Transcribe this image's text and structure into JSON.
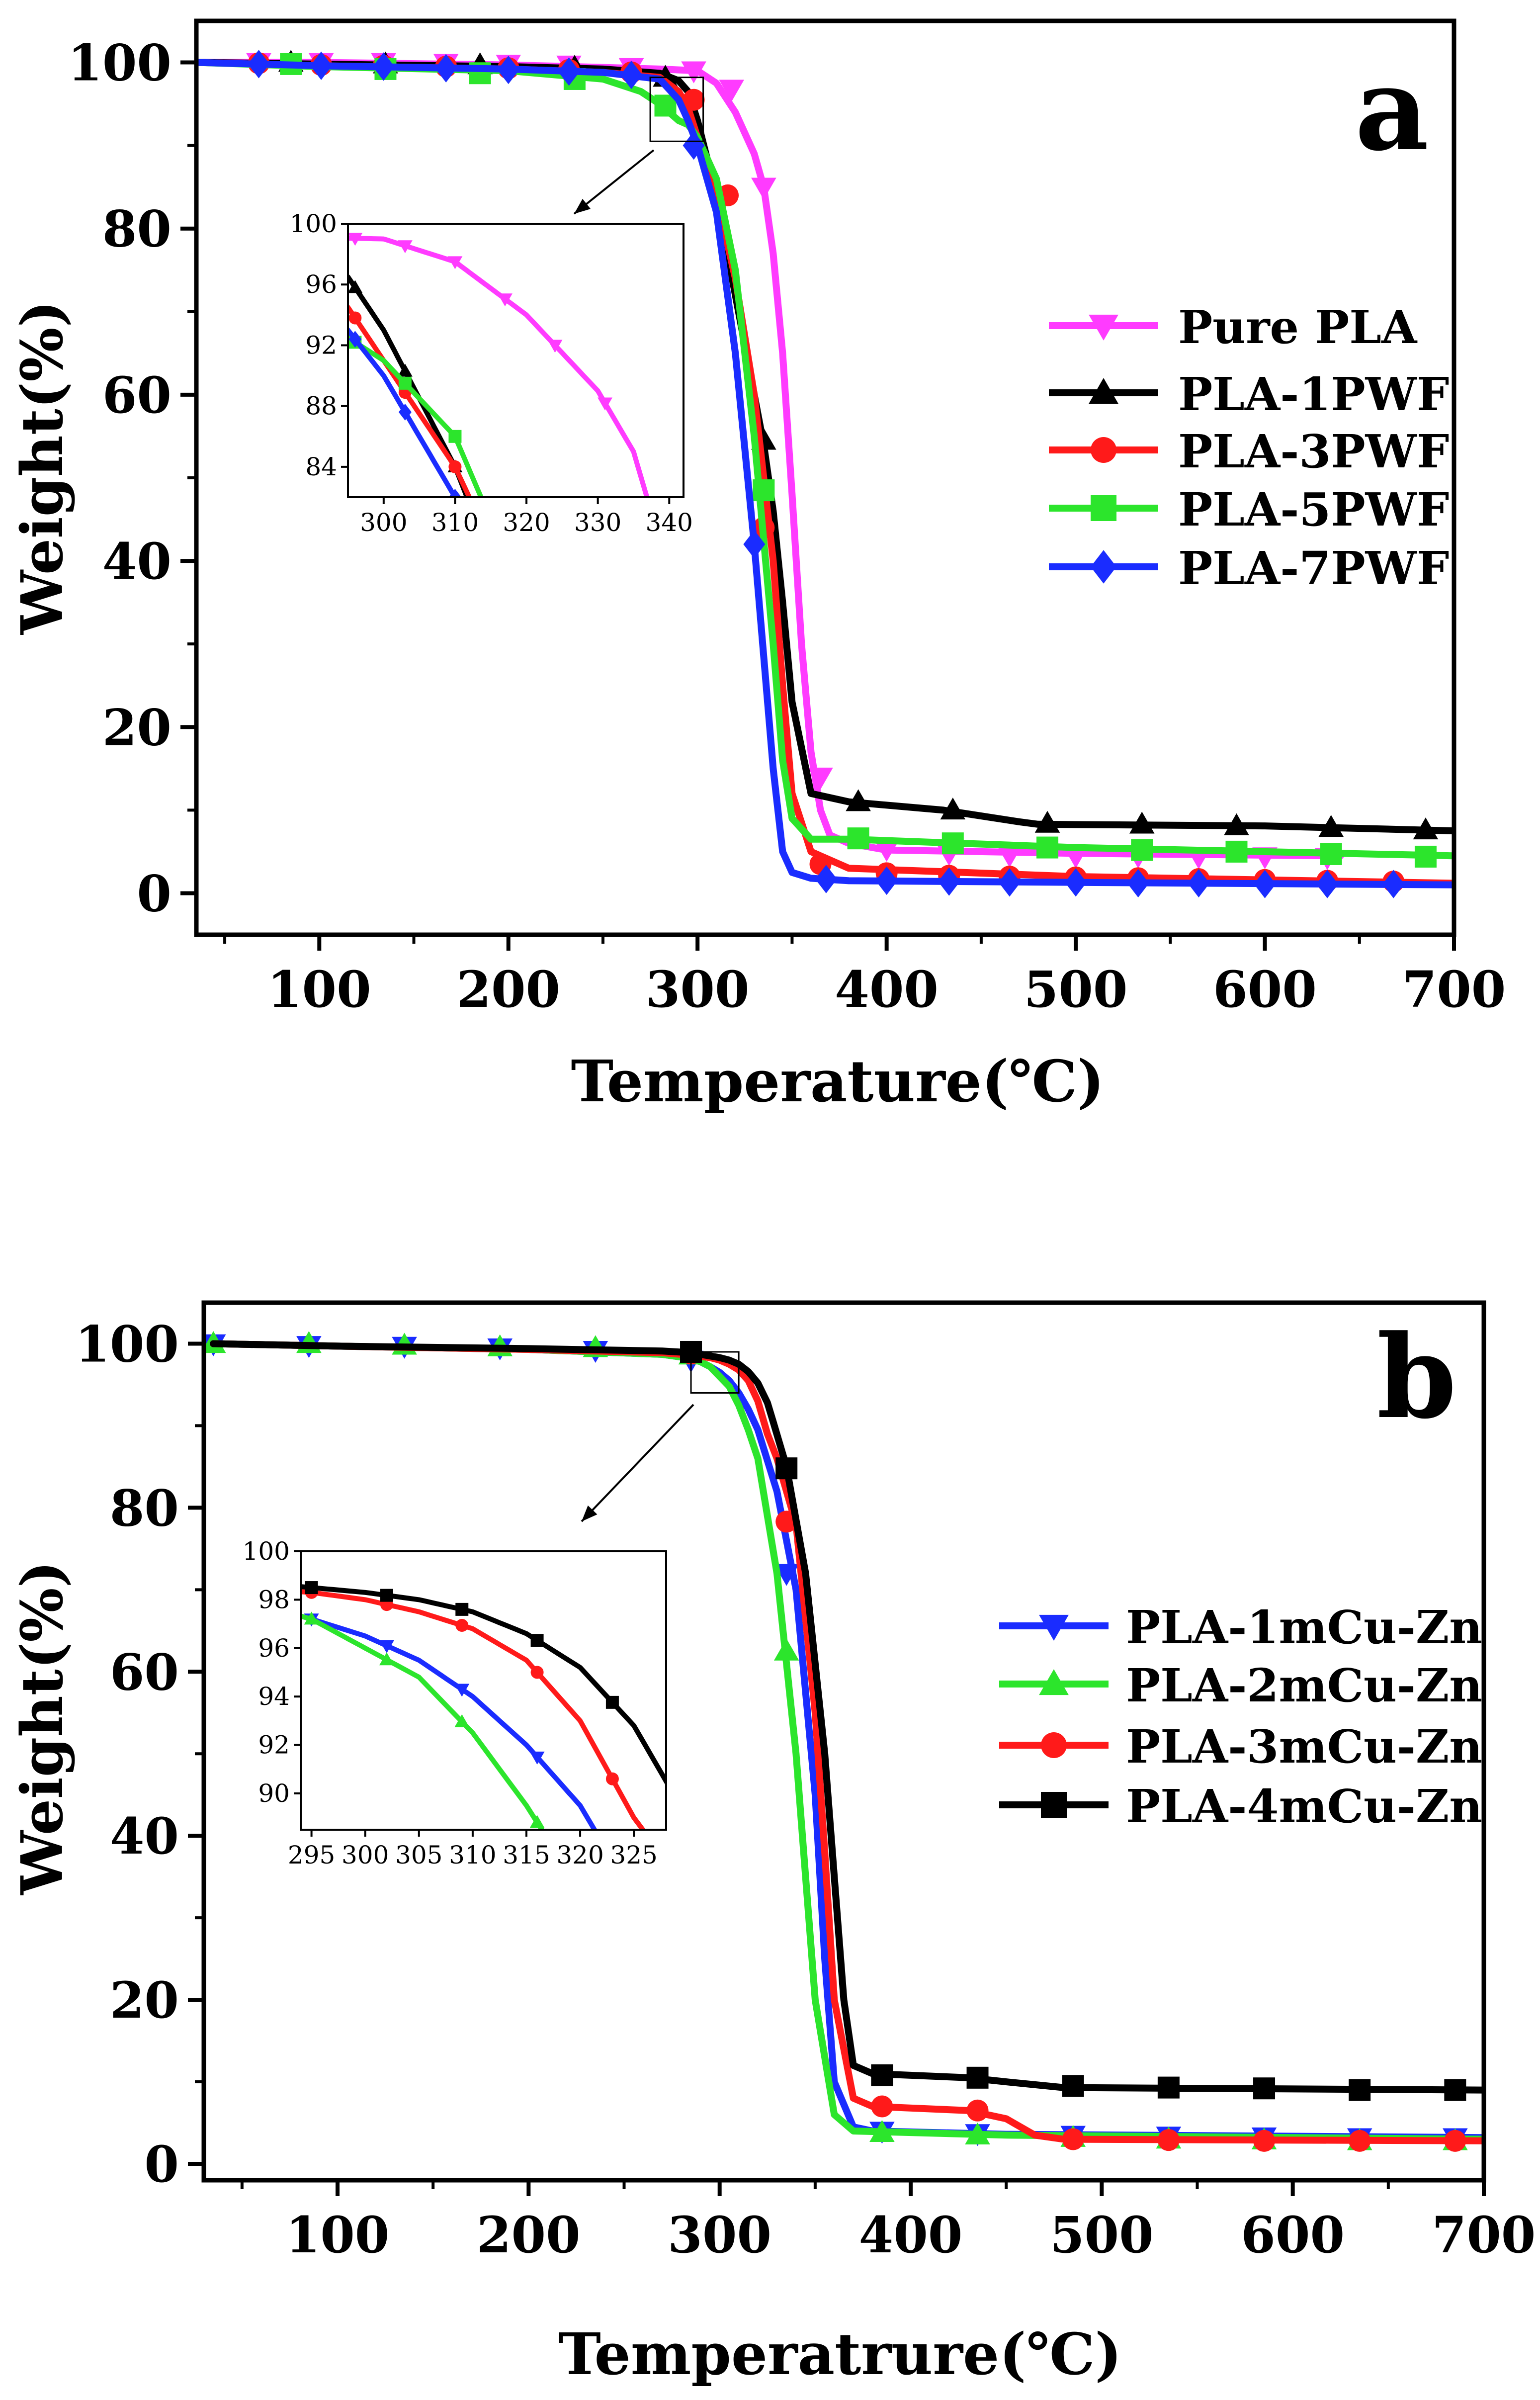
{
  "colors": {
    "pure_pla": "#ff3bff",
    "pla_1pwf": "#000000",
    "pla_3pwf": "#ff1a1a",
    "pla_5pwf": "#2ce52c",
    "pla_7pwf": "#1a2cff",
    "pla_1mcuzn": "#1a2cff",
    "pla_2mcuzn": "#2ce52c",
    "pla_3mcuzn": "#ff1a1a",
    "pla_4mcuzn": "#000000"
  },
  "chart_data": [
    {
      "type": "line",
      "panel_label": "a",
      "xlabel": "Temperature(℃)",
      "ylabel": "Weight(%)",
      "xlim": [
        35,
        700
      ],
      "ylim": [
        -5,
        105
      ],
      "x_ticks": [
        "100",
        "200",
        "300",
        "400",
        "500",
        "600",
        "700"
      ],
      "y_ticks": [
        "0",
        "20",
        "40",
        "60",
        "80",
        "100"
      ],
      "legend_position": "right",
      "series": [
        {
          "name": "Pure PLA",
          "color_key": "pure_pla",
          "marker": "triangle-down",
          "x": [
            35,
            100,
            200,
            250,
            280,
            300,
            310,
            320,
            330,
            335,
            340,
            345,
            350,
            355,
            360,
            365,
            370,
            380,
            400,
            500,
            640
          ],
          "y": [
            100,
            100,
            99.7,
            99.4,
            99.2,
            99,
            97.5,
            94,
            89,
            85,
            77,
            65,
            48,
            30,
            17,
            10,
            7,
            6,
            5.2,
            4.8,
            4.5
          ],
          "marker_x": [
            68,
            101,
            134,
            167,
            200,
            232,
            265,
            298,
            318,
            335,
            365,
            400,
            433,
            465,
            500,
            533,
            565,
            600,
            633
          ],
          "marker_y": [
            100,
            100,
            100,
            99.9,
            99.8,
            99.7,
            99.4,
            99,
            96.8,
            85,
            14,
            5.3,
            4.8,
            4.6,
            4.5,
            4.5,
            4.4,
            4.4,
            4.3
          ]
        },
        {
          "name": "PLA-1PWF",
          "color_key": "pla_1pwf",
          "marker": "triangle-up",
          "x": [
            35,
            100,
            200,
            250,
            280,
            290,
            295,
            300,
            310,
            320,
            330,
            335,
            340,
            345,
            350,
            360,
            380,
            430,
            470,
            480,
            600,
            700
          ],
          "y": [
            100,
            99.8,
            99.5,
            99.2,
            98.7,
            97.8,
            96.5,
            93,
            84,
            72,
            60,
            54,
            46,
            35,
            23,
            12,
            11,
            10,
            8.6,
            8.3,
            8.1,
            7.5
          ],
          "marker_x": [
            85,
            135,
            185,
            235,
            283,
            335,
            385,
            435,
            485,
            535,
            585,
            635,
            685
          ],
          "marker_y": [
            100,
            99.8,
            99.7,
            99.4,
            98.2,
            54.5,
            11,
            10,
            8.4,
            8.3,
            8.1,
            7.9,
            7.6
          ]
        },
        {
          "name": "PLA-3PWF",
          "color_key": "pla_3pwf",
          "marker": "circle",
          "x": [
            35,
            100,
            200,
            250,
            280,
            290,
            295,
            300,
            310,
            315,
            320,
            330,
            340,
            345,
            350,
            360,
            380,
            500,
            700
          ],
          "y": [
            100,
            99.6,
            99.2,
            98.8,
            98.2,
            96.5,
            94.5,
            91,
            84,
            79,
            74,
            60,
            40,
            25,
            12,
            5,
            3,
            2,
            1.2
          ],
          "marker_x": [
            68,
            101,
            134,
            167,
            200,
            232,
            265,
            298,
            316,
            335,
            365,
            400,
            433,
            465,
            500,
            533,
            565,
            600,
            633,
            668
          ],
          "marker_y": [
            99.9,
            99.7,
            99.6,
            99.5,
            99.3,
            99.1,
            98.8,
            95.5,
            84,
            44,
            3.5,
            2.4,
            2.1,
            2,
            1.9,
            1.8,
            1.7,
            1.6,
            1.5,
            1.4
          ]
        },
        {
          "name": "PLA-5PWF",
          "color_key": "pla_5pwf",
          "marker": "square",
          "x": [
            35,
            100,
            200,
            250,
            270,
            280,
            290,
            295,
            300,
            310,
            320,
            330,
            340,
            345,
            350,
            360,
            380,
            500,
            700
          ],
          "y": [
            100,
            99.5,
            99,
            98,
            96.5,
            95,
            93,
            92.5,
            91,
            86,
            75,
            55,
            30,
            16,
            9,
            6.5,
            6.5,
            5.5,
            4.5
          ],
          "marker_x": [
            85,
            135,
            185,
            235,
            283,
            335,
            385,
            435,
            485,
            535,
            585,
            635,
            685
          ],
          "marker_y": [
            99.8,
            99.2,
            98.7,
            98,
            94.8,
            48.5,
            6.6,
            6,
            5.5,
            5.2,
            5,
            4.7,
            4.4
          ]
        },
        {
          "name": "PLA-7PWF",
          "color_key": "pla_7pwf",
          "marker": "diamond",
          "x": [
            35,
            100,
            200,
            250,
            280,
            290,
            295,
            300,
            305,
            310,
            320,
            330,
            340,
            345,
            350,
            360,
            380,
            500,
            700
          ],
          "y": [
            100,
            99.6,
            99.2,
            98.8,
            98,
            95.5,
            93,
            90,
            86,
            82,
            65,
            42,
            15,
            5,
            2.5,
            1.8,
            1.5,
            1.3,
            1
          ],
          "marker_x": [
            68,
            101,
            134,
            167,
            200,
            232,
            265,
            298,
            330,
            368,
            400,
            433,
            465,
            500,
            533,
            565,
            600,
            633,
            668
          ],
          "marker_y": [
            99.8,
            99.6,
            99.5,
            99.3,
            99.1,
            98.9,
            98.5,
            90,
            42,
            1.7,
            1.5,
            1.4,
            1.3,
            1.3,
            1.2,
            1.2,
            1.1,
            1.1,
            1.1
          ]
        }
      ],
      "inset": {
        "xlim": [
          295,
          342
        ],
        "ylim": [
          82,
          100
        ],
        "x_ticks": [
          "300",
          "310",
          "320",
          "330",
          "340"
        ],
        "y_ticks": [
          "84",
          "88",
          "92",
          "96",
          "100"
        ]
      },
      "zoom_box": {
        "x": [
          275,
          303
        ],
        "y": [
          90.5,
          98.2
        ]
      }
    },
    {
      "type": "line",
      "panel_label": "b",
      "xlabel": "Temperatrure(℃)",
      "ylabel": "Weight(%)",
      "xlim": [
        30,
        700
      ],
      "ylim": [
        -2,
        105
      ],
      "x_ticks": [
        "100",
        "200",
        "300",
        "400",
        "500",
        "600",
        "700"
      ],
      "y_ticks": [
        "0",
        "20",
        "40",
        "60",
        "80",
        "100"
      ],
      "legend_position": "right",
      "series": [
        {
          "name": "PLA-1mCu-Zn",
          "color_key": "pla_1mcuzn",
          "marker": "triangle-down",
          "x": [
            35,
            100,
            200,
            270,
            285,
            290,
            295,
            300,
            305,
            310,
            315,
            320,
            330,
            340,
            350,
            355,
            360,
            370,
            380,
            450,
            700
          ],
          "y": [
            100,
            99.7,
            99.3,
            98.7,
            98.2,
            97.8,
            97.2,
            96.5,
            95.5,
            94,
            92,
            89.5,
            82,
            70,
            45,
            25,
            10,
            4.5,
            4,
            3.6,
            3.2
          ],
          "marker_x": [
            35,
            85,
            135,
            185,
            235,
            285,
            335,
            385,
            435,
            485,
            535,
            585,
            635,
            685
          ],
          "marker_y": [
            100,
            99.8,
            99.7,
            99.5,
            99.2,
            98,
            72,
            4,
            3.7,
            3.5,
            3.4,
            3.3,
            3.2,
            3.2
          ]
        },
        {
          "name": "PLA-2mCu-Zn",
          "color_key": "pla_2mcuzn",
          "marker": "triangle-up",
          "x": [
            35,
            100,
            200,
            270,
            285,
            290,
            295,
            300,
            305,
            310,
            315,
            320,
            330,
            340,
            345,
            350,
            360,
            370,
            450,
            700
          ],
          "y": [
            100,
            99.7,
            99.3,
            98.7,
            98.2,
            97.8,
            97.2,
            96,
            94.8,
            92.5,
            89.5,
            86,
            72,
            50,
            35,
            20,
            6,
            4,
            3.5,
            3
          ],
          "marker_x": [
            35,
            85,
            135,
            185,
            235,
            285,
            335,
            385,
            435,
            485,
            535,
            585,
            635,
            685
          ],
          "marker_y": [
            100,
            100,
            99.8,
            99.6,
            99.5,
            98.6,
            62.5,
            3.8,
            3.5,
            3.2,
            3,
            2.9,
            2.8,
            2.8
          ]
        },
        {
          "name": "PLA-3mCu-Zn",
          "color_key": "pla_3mcuzn",
          "marker": "circle",
          "x": [
            35,
            100,
            200,
            270,
            285,
            295,
            300,
            305,
            310,
            315,
            320,
            325,
            330,
            340,
            350,
            355,
            360,
            370,
            380,
            430,
            450,
            465,
            480,
            700
          ],
          "y": [
            100,
            99.7,
            99.3,
            98.9,
            98.6,
            98.3,
            98,
            97.5,
            96.8,
            95.5,
            93,
            89,
            86,
            78,
            55,
            38,
            20,
            8,
            7,
            6.5,
            5.5,
            3.5,
            3,
            2.8
          ],
          "marker_x": [
            285,
            335,
            385,
            435,
            485,
            535,
            585,
            635,
            685
          ],
          "marker_y": [
            98.8,
            78.3,
            7,
            6.5,
            3,
            2.9,
            2.8,
            2.8,
            2.8
          ]
        },
        {
          "name": "PLA-4mCu-Zn",
          "color_key": "pla_4mcuzn",
          "marker": "square",
          "x": [
            35,
            100,
            200,
            270,
            285,
            295,
            300,
            305,
            310,
            315,
            320,
            325,
            328,
            335,
            345,
            355,
            360,
            365,
            370,
            380,
            430,
            450,
            480,
            700
          ],
          "y": [
            100,
            99.7,
            99.4,
            99.1,
            98.9,
            98.5,
            98.3,
            98,
            97.5,
            96.6,
            95.2,
            92.8,
            90.5,
            85,
            72,
            50,
            35,
            20,
            12,
            11,
            10.5,
            10,
            9.3,
            9
          ],
          "marker_x": [
            285,
            335,
            385,
            435,
            485,
            535,
            585,
            635,
            685
          ],
          "marker_y": [
            99,
            84.8,
            10.8,
            10.5,
            9.5,
            9.3,
            9.2,
            9,
            9
          ]
        }
      ],
      "inset": {
        "xlim": [
          294,
          328
        ],
        "ylim": [
          88.5,
          100
        ],
        "x_ticks": [
          "295",
          "300",
          "305",
          "310",
          "315",
          "320",
          "325"
        ],
        "y_ticks": [
          "90",
          "92",
          "94",
          "96",
          "98",
          "100"
        ]
      },
      "zoom_box": {
        "x": [
          285,
          310
        ],
        "y": [
          94,
          99
        ]
      }
    }
  ]
}
